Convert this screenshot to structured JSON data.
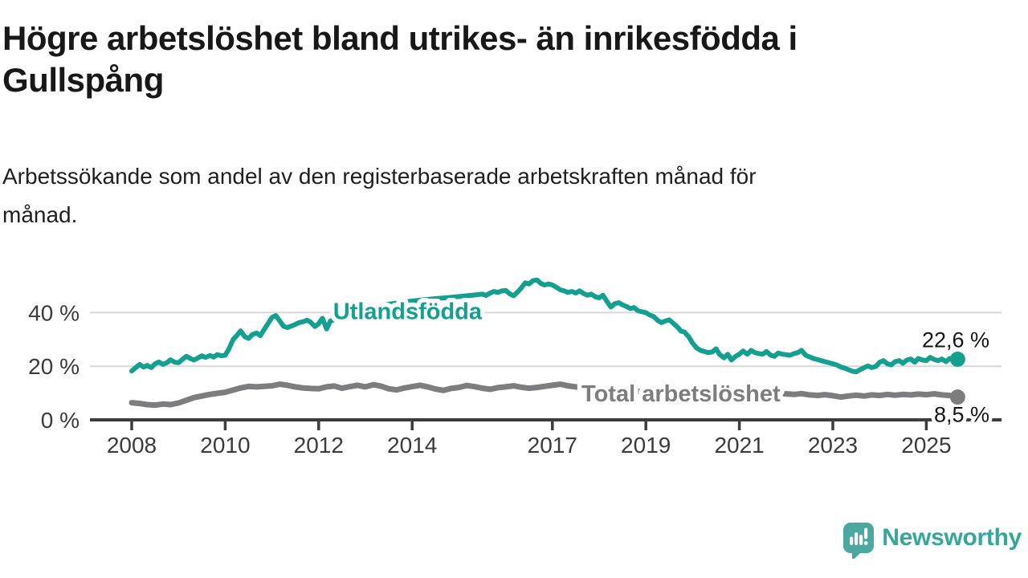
{
  "header": {
    "title": "Högre arbetslöshet bland utrikes- än inrikesfödda i Gullspång",
    "title_lines": [
      "Högre arbetslöshet bland utrikes- än inrikesfödda i",
      "Gullspång"
    ],
    "subtitle": "Arbetssökande som andel av den registerbaserade arbetskraften månad för månad.",
    "subtitle_lines": [
      "Arbetssökande som andel av den registerbaserade arbetskraften månad för",
      "månad."
    ]
  },
  "chart_data": {
    "type": "line",
    "title": "Högre arbetslöshet bland utrikes- än inrikesfödda i Gullspång",
    "x_axis": {
      "ticks": [
        2008,
        2010,
        2012,
        2014,
        2017,
        2019,
        2021,
        2023,
        2025
      ],
      "tick_labels": [
        "2008",
        "2010",
        "2012",
        "2014",
        "2017",
        "2019",
        "2021",
        "2023",
        "2025"
      ],
      "range": [
        2007.11,
        2026.6
      ]
    },
    "y_axis": {
      "ticks": [
        0,
        20,
        40
      ],
      "tick_labels": [
        "0 %",
        "20 %",
        "40 %"
      ],
      "range": [
        0,
        56
      ],
      "grid": true
    },
    "colors": {
      "grid": "#d8d8d8",
      "axis": "#3d3d3d",
      "tick_label": "#3b3b3b",
      "value_label": "#161616"
    },
    "legend_position": "inline-on-line",
    "series": [
      {
        "id": "utlandsfodda",
        "name": "Utlandsfödda",
        "color": "#14a091",
        "inline_label": {
          "text": "Utlandsfödda",
          "x": 2013.9,
          "y": 40.6
        },
        "end_label": {
          "text": "22,6 %",
          "position": "above"
        },
        "end_value": 22.6,
        "points": [
          [
            2008.0,
            18.2
          ],
          [
            2008.08,
            19.4
          ],
          [
            2008.17,
            20.7
          ],
          [
            2008.25,
            19.7
          ],
          [
            2008.33,
            20.3
          ],
          [
            2008.42,
            19.5
          ],
          [
            2008.5,
            20.9
          ],
          [
            2008.58,
            21.6
          ],
          [
            2008.67,
            20.7
          ],
          [
            2008.75,
            21.3
          ],
          [
            2008.83,
            22.4
          ],
          [
            2008.92,
            21.5
          ],
          [
            2009.0,
            21.3
          ],
          [
            2009.08,
            22.5
          ],
          [
            2009.17,
            23.7
          ],
          [
            2009.25,
            22.9
          ],
          [
            2009.33,
            22.3
          ],
          [
            2009.42,
            23.1
          ],
          [
            2009.5,
            23.9
          ],
          [
            2009.58,
            23.3
          ],
          [
            2009.67,
            24.0
          ],
          [
            2009.75,
            23.4
          ],
          [
            2009.83,
            24.3
          ],
          [
            2009.92,
            23.9
          ],
          [
            2010.0,
            24.1
          ],
          [
            2010.08,
            26.5
          ],
          [
            2010.17,
            30.0
          ],
          [
            2010.25,
            31.5
          ],
          [
            2010.33,
            33.2
          ],
          [
            2010.42,
            31.0
          ],
          [
            2010.5,
            30.4
          ],
          [
            2010.58,
            31.8
          ],
          [
            2010.67,
            32.4
          ],
          [
            2010.75,
            31.4
          ],
          [
            2010.83,
            33.6
          ],
          [
            2010.92,
            36.0
          ],
          [
            2011.0,
            38.2
          ],
          [
            2011.08,
            38.9
          ],
          [
            2011.17,
            36.8
          ],
          [
            2011.25,
            34.9
          ],
          [
            2011.33,
            34.4
          ],
          [
            2011.42,
            35.0
          ],
          [
            2011.5,
            35.6
          ],
          [
            2011.58,
            36.3
          ],
          [
            2011.67,
            36.6
          ],
          [
            2011.75,
            37.2
          ],
          [
            2011.83,
            36.4
          ],
          [
            2011.92,
            34.8
          ],
          [
            2012.0,
            35.9
          ],
          [
            2012.08,
            37.9
          ],
          [
            2012.17,
            33.9
          ],
          [
            2012.25,
            36.9
          ],
          [
            2012.5,
            38.3
          ],
          [
            2012.75,
            39.8
          ],
          [
            2013.0,
            41.2
          ],
          [
            2013.25,
            42.3
          ],
          [
            2013.5,
            43.1
          ],
          [
            2013.75,
            43.8
          ],
          [
            2014.0,
            44.3
          ],
          [
            2014.25,
            44.8
          ],
          [
            2014.5,
            45.2
          ],
          [
            2014.75,
            45.6
          ],
          [
            2015.0,
            46.0
          ],
          [
            2015.25,
            46.4
          ],
          [
            2015.5,
            46.9
          ],
          [
            2015.58,
            46.4
          ],
          [
            2015.67,
            47.3
          ],
          [
            2015.75,
            47.9
          ],
          [
            2015.83,
            47.5
          ],
          [
            2015.92,
            48.1
          ],
          [
            2016.0,
            48.3
          ],
          [
            2016.08,
            47.1
          ],
          [
            2016.17,
            46.3
          ],
          [
            2016.25,
            47.6
          ],
          [
            2016.33,
            49.1
          ],
          [
            2016.42,
            51.1
          ],
          [
            2016.5,
            50.7
          ],
          [
            2016.58,
            51.9
          ],
          [
            2016.67,
            52.2
          ],
          [
            2016.75,
            50.9
          ],
          [
            2016.83,
            50.3
          ],
          [
            2016.92,
            50.7
          ],
          [
            2017.0,
            50.3
          ],
          [
            2017.08,
            49.5
          ],
          [
            2017.17,
            48.5
          ],
          [
            2017.25,
            48.1
          ],
          [
            2017.33,
            47.5
          ],
          [
            2017.42,
            47.9
          ],
          [
            2017.5,
            47.3
          ],
          [
            2017.58,
            48.1
          ],
          [
            2017.67,
            47.1
          ],
          [
            2017.75,
            46.5
          ],
          [
            2017.83,
            46.9
          ],
          [
            2017.92,
            45.9
          ],
          [
            2018.0,
            45.5
          ],
          [
            2018.08,
            46.5
          ],
          [
            2018.17,
            44.1
          ],
          [
            2018.25,
            42.1
          ],
          [
            2018.33,
            43.3
          ],
          [
            2018.42,
            43.7
          ],
          [
            2018.5,
            42.9
          ],
          [
            2018.58,
            42.3
          ],
          [
            2018.67,
            41.5
          ],
          [
            2018.75,
            41.9
          ],
          [
            2018.83,
            40.7
          ],
          [
            2018.92,
            40.3
          ],
          [
            2019.0,
            40.0
          ],
          [
            2019.08,
            39.1
          ],
          [
            2019.17,
            38.5
          ],
          [
            2019.25,
            37.1
          ],
          [
            2019.33,
            36.3
          ],
          [
            2019.42,
            36.9
          ],
          [
            2019.5,
            37.3
          ],
          [
            2019.58,
            36.1
          ],
          [
            2019.67,
            34.7
          ],
          [
            2019.75,
            33.1
          ],
          [
            2019.83,
            32.7
          ],
          [
            2019.92,
            30.9
          ],
          [
            2020.0,
            28.6
          ],
          [
            2020.08,
            26.9
          ],
          [
            2020.17,
            25.9
          ],
          [
            2020.25,
            25.5
          ],
          [
            2020.33,
            25.1
          ],
          [
            2020.42,
            25.3
          ],
          [
            2020.5,
            26.5
          ],
          [
            2020.58,
            24.3
          ],
          [
            2020.67,
            23.1
          ],
          [
            2020.75,
            24.5
          ],
          [
            2020.83,
            22.3
          ],
          [
            2020.92,
            23.7
          ],
          [
            2021.0,
            24.5
          ],
          [
            2021.08,
            25.7
          ],
          [
            2021.17,
            24.5
          ],
          [
            2021.25,
            25.9
          ],
          [
            2021.33,
            25.1
          ],
          [
            2021.42,
            24.7
          ],
          [
            2021.5,
            24.5
          ],
          [
            2021.58,
            25.5
          ],
          [
            2021.67,
            24.1
          ],
          [
            2021.75,
            23.7
          ],
          [
            2021.83,
            24.9
          ],
          [
            2021.92,
            24.5
          ],
          [
            2022.0,
            24.3
          ],
          [
            2022.08,
            24.1
          ],
          [
            2022.17,
            24.7
          ],
          [
            2022.25,
            25.1
          ],
          [
            2022.33,
            25.9
          ],
          [
            2022.42,
            24.1
          ],
          [
            2022.5,
            23.5
          ],
          [
            2022.58,
            22.9
          ],
          [
            2022.67,
            22.5
          ],
          [
            2022.75,
            22.1
          ],
          [
            2022.83,
            21.7
          ],
          [
            2022.92,
            21.3
          ],
          [
            2023.0,
            20.9
          ],
          [
            2023.08,
            20.5
          ],
          [
            2023.17,
            19.7
          ],
          [
            2023.25,
            19.3
          ],
          [
            2023.33,
            18.7
          ],
          [
            2023.42,
            18.1
          ],
          [
            2023.5,
            17.9
          ],
          [
            2023.58,
            18.7
          ],
          [
            2023.67,
            19.5
          ],
          [
            2023.75,
            20.1
          ],
          [
            2023.83,
            19.5
          ],
          [
            2023.92,
            19.9
          ],
          [
            2024.0,
            21.5
          ],
          [
            2024.08,
            22.1
          ],
          [
            2024.17,
            20.9
          ],
          [
            2024.25,
            20.5
          ],
          [
            2024.33,
            21.7
          ],
          [
            2024.42,
            22.1
          ],
          [
            2024.5,
            21.1
          ],
          [
            2024.58,
            22.3
          ],
          [
            2024.67,
            22.7
          ],
          [
            2024.75,
            21.5
          ],
          [
            2024.83,
            22.9
          ],
          [
            2024.92,
            22.3
          ],
          [
            2025.0,
            22.1
          ],
          [
            2025.08,
            23.3
          ],
          [
            2025.17,
            22.5
          ],
          [
            2025.25,
            22.1
          ],
          [
            2025.33,
            22.7
          ],
          [
            2025.42,
            21.7
          ],
          [
            2025.5,
            22.9
          ],
          [
            2025.58,
            22.1
          ],
          [
            2025.67,
            22.6
          ]
        ]
      },
      {
        "id": "total",
        "name": "Total arbetslöshet",
        "color": "#7d7d80",
        "inline_label": {
          "text": "Total arbetslöshet",
          "x": 2019.75,
          "y": 9.9
        },
        "end_label": {
          "text": "8,5 %",
          "position": "below"
        },
        "end_value": 8.5,
        "points": [
          [
            2008.0,
            6.4
          ],
          [
            2008.17,
            6.1
          ],
          [
            2008.33,
            5.7
          ],
          [
            2008.5,
            5.5
          ],
          [
            2008.67,
            5.9
          ],
          [
            2008.83,
            5.7
          ],
          [
            2009.0,
            6.3
          ],
          [
            2009.17,
            7.3
          ],
          [
            2009.33,
            8.3
          ],
          [
            2009.5,
            8.9
          ],
          [
            2009.67,
            9.5
          ],
          [
            2009.83,
            9.9
          ],
          [
            2010.0,
            10.3
          ],
          [
            2010.17,
            11.1
          ],
          [
            2010.33,
            11.9
          ],
          [
            2010.5,
            12.5
          ],
          [
            2010.67,
            12.3
          ],
          [
            2010.83,
            12.5
          ],
          [
            2011.0,
            12.7
          ],
          [
            2011.17,
            13.3
          ],
          [
            2011.33,
            12.9
          ],
          [
            2011.5,
            12.3
          ],
          [
            2011.67,
            11.9
          ],
          [
            2011.83,
            11.7
          ],
          [
            2012.0,
            11.6
          ],
          [
            2012.17,
            12.3
          ],
          [
            2012.33,
            12.6
          ],
          [
            2012.5,
            11.8
          ],
          [
            2012.67,
            12.4
          ],
          [
            2012.83,
            12.9
          ],
          [
            2013.0,
            12.3
          ],
          [
            2013.17,
            13.1
          ],
          [
            2013.33,
            12.6
          ],
          [
            2013.5,
            11.6
          ],
          [
            2013.67,
            11.2
          ],
          [
            2013.83,
            11.9
          ],
          [
            2014.0,
            12.4
          ],
          [
            2014.17,
            12.9
          ],
          [
            2014.33,
            12.3
          ],
          [
            2014.5,
            11.5
          ],
          [
            2014.67,
            11.0
          ],
          [
            2014.83,
            11.7
          ],
          [
            2015.0,
            12.1
          ],
          [
            2015.17,
            12.8
          ],
          [
            2015.33,
            12.4
          ],
          [
            2015.5,
            11.8
          ],
          [
            2015.67,
            11.4
          ],
          [
            2015.83,
            12.0
          ],
          [
            2016.0,
            12.3
          ],
          [
            2016.17,
            12.7
          ],
          [
            2016.33,
            12.2
          ],
          [
            2016.5,
            11.8
          ],
          [
            2016.67,
            12.1
          ],
          [
            2016.83,
            12.5
          ],
          [
            2017.0,
            12.9
          ],
          [
            2017.17,
            13.3
          ],
          [
            2017.33,
            12.7
          ],
          [
            2017.5,
            12.3
          ],
          [
            2018.0,
            11.5
          ],
          [
            2018.5,
            10.9
          ],
          [
            2019.0,
            10.5
          ],
          [
            2019.5,
            10.3
          ],
          [
            2020.0,
            10.9
          ],
          [
            2020.5,
            10.7
          ],
          [
            2021.0,
            10.3
          ],
          [
            2021.5,
            9.9
          ],
          [
            2022.0,
            9.7
          ],
          [
            2022.17,
            9.5
          ],
          [
            2022.33,
            9.8
          ],
          [
            2022.5,
            9.3
          ],
          [
            2022.67,
            9.1
          ],
          [
            2022.83,
            9.4
          ],
          [
            2023.0,
            9.0
          ],
          [
            2023.17,
            8.5
          ],
          [
            2023.33,
            8.9
          ],
          [
            2023.5,
            9.2
          ],
          [
            2023.67,
            8.9
          ],
          [
            2023.83,
            9.3
          ],
          [
            2024.0,
            9.1
          ],
          [
            2024.17,
            9.5
          ],
          [
            2024.33,
            9.2
          ],
          [
            2024.5,
            9.5
          ],
          [
            2024.67,
            9.3
          ],
          [
            2024.83,
            9.6
          ],
          [
            2025.0,
            9.4
          ],
          [
            2025.17,
            9.7
          ],
          [
            2025.33,
            9.3
          ],
          [
            2025.5,
            9.1
          ],
          [
            2025.67,
            8.5
          ]
        ]
      }
    ]
  },
  "footer": {
    "brand": "Newsworthy",
    "logo_icon": "speech-bubble-bar-chart-icon",
    "brand_color": "#35a79a",
    "icon_color": "#4aa89f"
  }
}
